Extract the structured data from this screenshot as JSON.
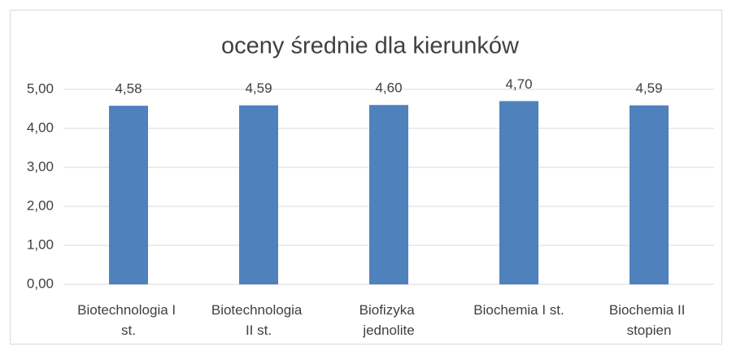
{
  "chart_data": {
    "type": "bar",
    "title": "oceny średnie dla kierunków",
    "categories": [
      "Biotechnologia I st.",
      "Biotechnologia II st.",
      "Biofizyka jednolite",
      "Biochemia I st.",
      "Biochemia II stopien"
    ],
    "values": [
      4.58,
      4.59,
      4.6,
      4.7,
      4.59
    ],
    "value_labels": [
      "4,58",
      "4,59",
      "4,60",
      "4,70",
      "4,59"
    ],
    "color": "#4f81bd",
    "ylim": [
      0,
      5
    ],
    "yticks": [
      {
        "value": 0,
        "label": "0,00"
      },
      {
        "value": 1,
        "label": "1,00"
      },
      {
        "value": 2,
        "label": "2,00"
      },
      {
        "value": 3,
        "label": "3,00"
      },
      {
        "value": 4,
        "label": "4,00"
      },
      {
        "value": 5,
        "label": "5,00"
      }
    ],
    "grid": true
  }
}
